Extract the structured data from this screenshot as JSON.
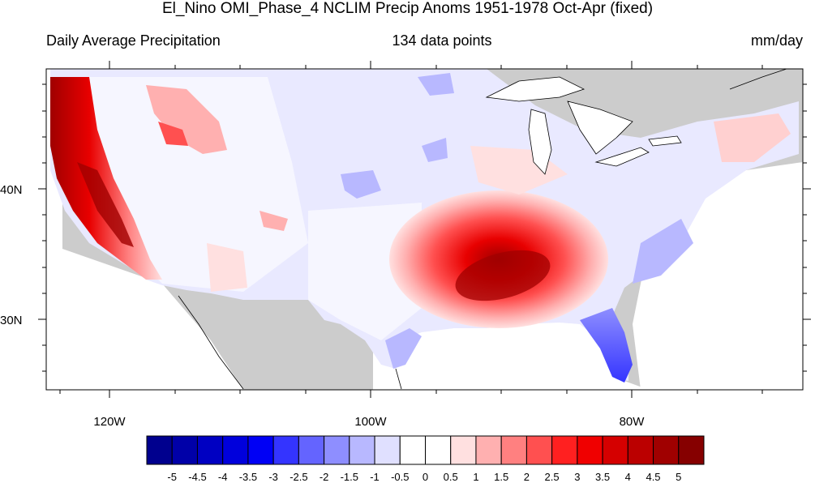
{
  "title": "El_Nino OMI_Phase_4 NCLIM Precip Anoms 1951-1978 Oct-Apr (fixed)",
  "subtitle": {
    "left": "Daily Average Precipitation",
    "center": "134 data points",
    "right": "mm/day"
  },
  "map": {
    "region": "Contiguous United States",
    "lon_ticks": [
      "120W",
      "100W",
      "80W"
    ],
    "lat_ticks": [
      "40N",
      "30N"
    ],
    "land_mask_color": "#cccccc",
    "ocean_color": "#ffffff"
  },
  "colorbar": {
    "labels": [
      "-5",
      "-4.5",
      "-4",
      "-3.5",
      "-3",
      "-2.5",
      "-2",
      "-1.5",
      "-1",
      "-0.5",
      "0",
      "0.5",
      "1",
      "1.5",
      "2",
      "2.5",
      "3",
      "3.5",
      "4",
      "4.5",
      "5"
    ],
    "colors": [
      "#00008e",
      "#0000a8",
      "#0000c2",
      "#0000dc",
      "#0000f5",
      "#3434ff",
      "#6464ff",
      "#8e8eff",
      "#b8b8ff",
      "#e0e0ff",
      "#ffffff",
      "#ffffff",
      "#ffe0e0",
      "#ffb0b0",
      "#ff8080",
      "#ff5050",
      "#ff2020",
      "#f00000",
      "#d50000",
      "#bb0000",
      "#a00000",
      "#860000"
    ]
  }
}
